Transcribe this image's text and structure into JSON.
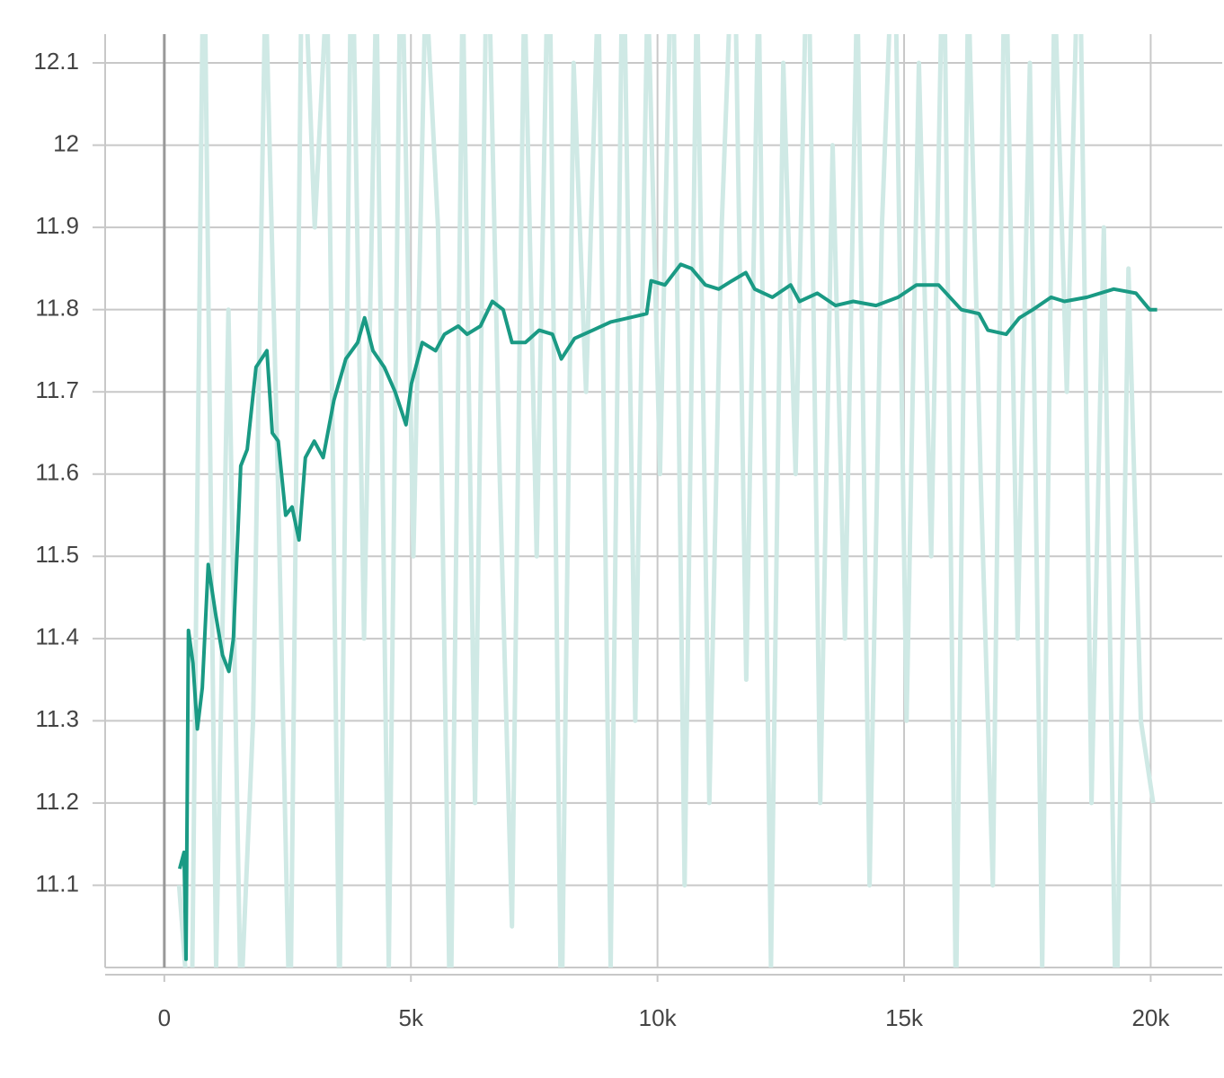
{
  "chart_data": {
    "type": "line",
    "xlim": [
      -1200,
      21450
    ],
    "ylim": [
      11.0,
      12.135
    ],
    "xticks": [
      0,
      {
        "value": 5000,
        "label": "5k"
      },
      {
        "value": 10000,
        "label": "10k"
      },
      {
        "value": 15000,
        "label": "15k"
      },
      {
        "value": 20000,
        "label": "20k"
      }
    ],
    "yticks": [
      11.1,
      11.2,
      11.3,
      11.4,
      11.5,
      11.6,
      11.7,
      11.8,
      11.9,
      12,
      12.1
    ],
    "grid": true,
    "series": [
      {
        "color": "#cfe9e5",
        "x": [
          300,
          550,
          800,
          1050,
          1300,
          1550,
          1800,
          2050,
          2300,
          2550,
          2800,
          3050,
          3300,
          3550,
          3800,
          4050,
          4300,
          4550,
          4800,
          5050,
          5300,
          5550,
          5800,
          6050,
          6300,
          6550,
          6800,
          7050,
          7300,
          7550,
          7800,
          8050,
          8300,
          8550,
          8800,
          9050,
          9300,
          9550,
          9800,
          10050,
          10300,
          10550,
          10800,
          11050,
          11300,
          11550,
          11800,
          12050,
          12300,
          12550,
          12800,
          13050,
          13300,
          13550,
          13800,
          14050,
          14300,
          14550,
          14800,
          15050,
          15300,
          15550,
          15800,
          16050,
          16300,
          16550,
          16800,
          17050,
          17300,
          17550,
          17800,
          18050,
          18300,
          18550,
          18800,
          19050,
          19300,
          19550,
          19800,
          20050
        ],
        "values": [
          11.1,
          10.9,
          12.3,
          11.0,
          11.8,
          10.95,
          11.3,
          12.2,
          11.6,
          10.9,
          12.3,
          11.9,
          12.2,
          10.95,
          12.3,
          11.4,
          12.2,
          11.0,
          12.3,
          11.5,
          12.2,
          11.9,
          10.9,
          12.2,
          11.2,
          12.3,
          11.6,
          11.05,
          12.2,
          11.5,
          12.3,
          10.9,
          12.1,
          11.7,
          12.2,
          11.0,
          12.3,
          11.3,
          12.2,
          11.6,
          12.3,
          11.1,
          12.2,
          11.2,
          11.9,
          12.3,
          11.35,
          12.2,
          11.0,
          12.1,
          11.6,
          12.3,
          11.2,
          12.0,
          11.4,
          12.2,
          11.1,
          11.9,
          12.3,
          11.3,
          12.1,
          11.5,
          12.3,
          10.95,
          12.2,
          11.6,
          11.1,
          12.3,
          11.4,
          12.1,
          11.0,
          12.2,
          11.7,
          12.3,
          11.2,
          11.9,
          10.9,
          11.85,
          11.3,
          11.2
        ]
      },
      {
        "color": "#1a9a84",
        "x": [
          310,
          400,
          440,
          490,
          580,
          670,
          770,
          890,
          1040,
          1180,
          1310,
          1400,
          1550,
          1680,
          1860,
          2080,
          2190,
          2310,
          2460,
          2590,
          2730,
          2860,
          3040,
          3220,
          3440,
          3680,
          3920,
          4060,
          4230,
          4460,
          4680,
          4900,
          5010,
          5230,
          5500,
          5680,
          5960,
          6140,
          6410,
          6650,
          6870,
          7050,
          7320,
          7600,
          7870,
          8050,
          8320,
          8690,
          9050,
          9420,
          9780,
          9870,
          10150,
          10470,
          10690,
          10970,
          11240,
          11510,
          11790,
          11970,
          12330,
          12700,
          12880,
          13240,
          13610,
          13970,
          14430,
          14880,
          15250,
          15700,
          16160,
          16520,
          16700,
          17070,
          17340,
          17610,
          17980,
          18250,
          18710,
          19250,
          19700,
          19980,
          20130
        ],
        "values": [
          11.12,
          11.14,
          11.01,
          11.41,
          11.37,
          11.29,
          11.34,
          11.49,
          11.43,
          11.38,
          11.36,
          11.4,
          11.61,
          11.63,
          11.73,
          11.75,
          11.65,
          11.64,
          11.55,
          11.56,
          11.52,
          11.62,
          11.64,
          11.62,
          11.69,
          11.74,
          11.76,
          11.79,
          11.75,
          11.73,
          11.7,
          11.66,
          11.71,
          11.76,
          11.75,
          11.77,
          11.78,
          11.77,
          11.78,
          11.81,
          11.8,
          11.76,
          11.76,
          11.775,
          11.77,
          11.74,
          11.765,
          11.775,
          11.785,
          11.79,
          11.795,
          11.835,
          11.83,
          11.855,
          11.85,
          11.83,
          11.825,
          11.835,
          11.845,
          11.825,
          11.815,
          11.83,
          11.81,
          11.82,
          11.805,
          11.81,
          11.805,
          11.815,
          11.83,
          11.83,
          11.8,
          11.795,
          11.775,
          11.77,
          11.79,
          11.8,
          11.815,
          11.81,
          11.815,
          11.825,
          11.82,
          11.8,
          11.8
        ]
      }
    ]
  }
}
